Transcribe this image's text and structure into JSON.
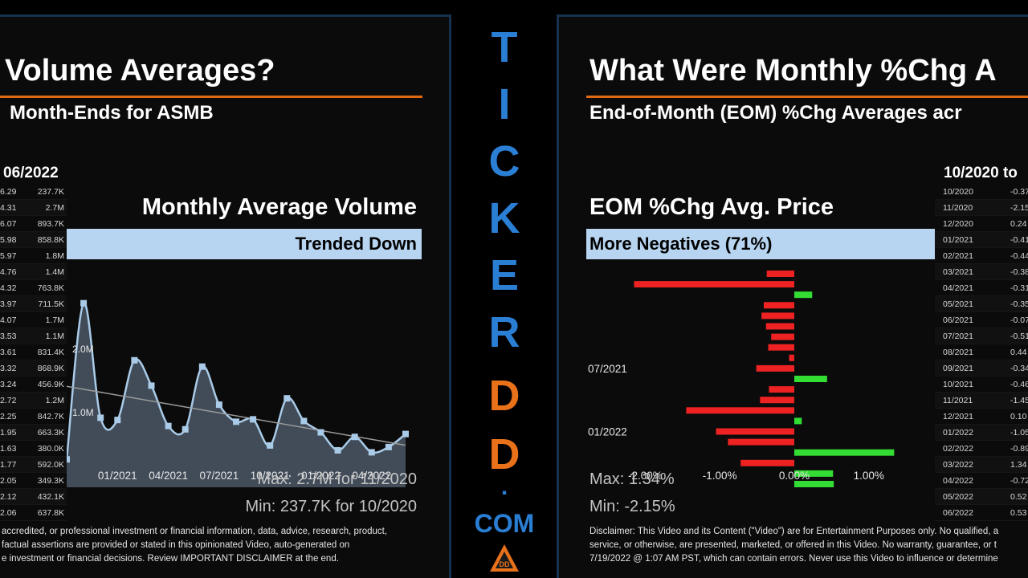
{
  "left": {
    "title": "Volume Averages?",
    "subtitle": "Month-Ends for ASMB",
    "range": "06/2022",
    "table": [
      {
        "a": "6.29",
        "b": "237.7K"
      },
      {
        "a": "4.31",
        "b": "2.7M"
      },
      {
        "a": "6.07",
        "b": "893.7K"
      },
      {
        "a": "5.98",
        "b": "858.8K"
      },
      {
        "a": "5.97",
        "b": "1.8M"
      },
      {
        "a": "4.76",
        "b": "1.4M"
      },
      {
        "a": "4.32",
        "b": "763.8K"
      },
      {
        "a": "3.97",
        "b": "711.5K"
      },
      {
        "a": "4.07",
        "b": "1.7M"
      },
      {
        "a": "3.53",
        "b": "1.1M"
      },
      {
        "a": "3.61",
        "b": "831.4K"
      },
      {
        "a": "3.32",
        "b": "868.9K"
      },
      {
        "a": "3.24",
        "b": "456.9K"
      },
      {
        "a": "2.72",
        "b": "1.2M"
      },
      {
        "a": "2.25",
        "b": "842.7K"
      },
      {
        "a": "1.95",
        "b": "663.3K"
      },
      {
        "a": "1.63",
        "b": "380.0K"
      },
      {
        "a": "1.77",
        "b": "592.0K"
      },
      {
        "a": "2.05",
        "b": "349.3K"
      },
      {
        "a": "2.12",
        "b": "432.1K"
      },
      {
        "a": "2.06",
        "b": "637.8K"
      }
    ],
    "disclaimer": [
      "accredited, or professional investment or financial information, data, advice, research, product,",
      "factual assertions are provided or stated in this opinionated Video, auto-generated on",
      "e investment or financial decisions. Review IMPORTANT DISCLAIMER at the end."
    ]
  },
  "right": {
    "title": "What Were Monthly %Chg A",
    "subtitle": "End-of-Month (EOM) %Chg Averages acr",
    "range": "10/2020 to",
    "table": [
      {
        "m": "10/2020",
        "v": "-0.37"
      },
      {
        "m": "11/2020",
        "v": "-2.15"
      },
      {
        "m": "12/2020",
        "v": "0.24"
      },
      {
        "m": "01/2021",
        "v": "-0.41"
      },
      {
        "m": "02/2021",
        "v": "-0.44"
      },
      {
        "m": "03/2021",
        "v": "-0.38"
      },
      {
        "m": "04/2021",
        "v": "-0.31"
      },
      {
        "m": "05/2021",
        "v": "-0.35"
      },
      {
        "m": "06/2021",
        "v": "-0.07"
      },
      {
        "m": "07/2021",
        "v": "-0.51"
      },
      {
        "m": "08/2021",
        "v": "0.44"
      },
      {
        "m": "09/2021",
        "v": "-0.34"
      },
      {
        "m": "10/2021",
        "v": "-0.46"
      },
      {
        "m": "11/2021",
        "v": "-1.45"
      },
      {
        "m": "12/2021",
        "v": "0.10"
      },
      {
        "m": "01/2022",
        "v": "-1.05"
      },
      {
        "m": "02/2022",
        "v": "-0.89"
      },
      {
        "m": "03/2022",
        "v": "1.34"
      },
      {
        "m": "04/2022",
        "v": "-0.72"
      },
      {
        "m": "05/2022",
        "v": "0.52"
      },
      {
        "m": "06/2022",
        "v": "0.53"
      }
    ],
    "disclaimer": [
      "Disclaimer: This Video and its Content (\"Video\") are for Entertainment Purposes only. No qualified, a",
      "service, or otherwise, are presented, marketed, or offered in this Video. No warranty, guarantee, or t",
      "7/19/2022 @ 1:07 AM PST, which can contain errors. Never use this Video to influence or determine"
    ]
  },
  "brand": {
    "letters": [
      "T",
      "I",
      "C",
      "K",
      "E",
      "R",
      "D",
      "D"
    ],
    "dot": ".",
    "com": "COM",
    "logo_text": "DD"
  },
  "colors": {
    "accent_orange": "#e06a12",
    "brand_blue": "#2a7fd4",
    "banner_blue": "#b7d4f0",
    "bar_negative": "#ee2222",
    "bar_positive": "#33dd33",
    "area_fill": "#4b5866",
    "line_light": "#a9cbe8"
  },
  "chart_data": [
    {
      "type": "area",
      "title": "Monthly Average Volume",
      "banner": "Trended Down",
      "x": [
        "10/2020",
        "11/2020",
        "12/2020",
        "01/2021",
        "02/2021",
        "03/2021",
        "04/2021",
        "05/2021",
        "06/2021",
        "07/2021",
        "08/2021",
        "09/2021",
        "10/2021",
        "11/2021",
        "12/2021",
        "01/2022",
        "02/2022",
        "03/2022",
        "04/2022",
        "05/2022",
        "06/2022"
      ],
      "values": [
        0.2377,
        2.7,
        0.8937,
        0.8588,
        1.8,
        1.4,
        0.7638,
        0.7115,
        1.7,
        1.1,
        0.8314,
        0.8689,
        0.4569,
        1.2,
        0.8427,
        0.6633,
        0.38,
        0.592,
        0.3493,
        0.4321,
        0.6378
      ],
      "value_unit": "M",
      "ytick_labels": [
        "1.0M",
        "2.0M"
      ],
      "yticks": [
        1.0,
        2.0
      ],
      "xtick_labels": [
        "01/2021",
        "04/2021",
        "07/2021",
        "10/2021",
        "01/2022",
        "04/2022"
      ],
      "trendline": true,
      "ylim": [
        0,
        3.0
      ],
      "stats": {
        "max": "Max: 2.7M for 11/2020",
        "min": "Min: 237.7K for 10/2020"
      }
    },
    {
      "type": "bar",
      "orientation": "horizontal",
      "title": "EOM %Chg Avg. Price",
      "banner": "More Negatives (71%)",
      "categories": [
        "10/2020",
        "11/2020",
        "12/2020",
        "01/2021",
        "02/2021",
        "03/2021",
        "04/2021",
        "05/2021",
        "06/2021",
        "07/2021",
        "08/2021",
        "09/2021",
        "10/2021",
        "11/2021",
        "12/2021",
        "01/2022",
        "02/2022",
        "03/2022",
        "04/2022",
        "05/2022",
        "06/2022"
      ],
      "values": [
        -0.37,
        -2.15,
        0.24,
        -0.41,
        -0.44,
        -0.38,
        -0.31,
        -0.35,
        -0.07,
        -0.51,
        0.44,
        -0.34,
        -0.46,
        -1.45,
        0.1,
        -1.05,
        -0.89,
        1.34,
        -0.72,
        0.52,
        0.53
      ],
      "ytick_labels": [
        "07/2021",
        "01/2022"
      ],
      "xtick_labels": [
        "-2.00%",
        "-1.00%",
        "0.00%",
        "1.00%"
      ],
      "xticks": [
        -2.0,
        -1.0,
        0.0,
        1.0
      ],
      "xlim": [
        -2.2,
        1.6
      ],
      "stats": {
        "max": "Max: 1.34%",
        "min": "Min: -2.15%"
      }
    }
  ]
}
